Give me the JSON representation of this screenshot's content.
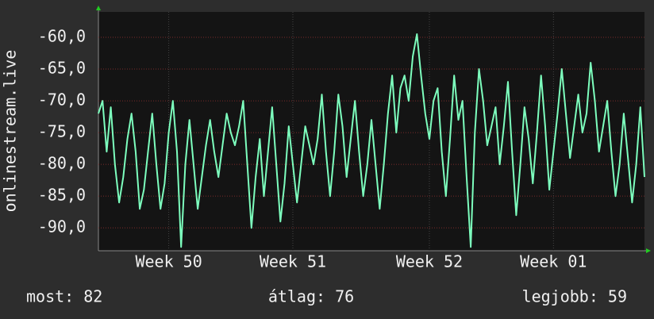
{
  "chart_data": {
    "type": "line",
    "ylabel": "onlinestream.live",
    "values": [
      -72,
      -70,
      -78,
      -71,
      -80,
      -86,
      -82,
      -76,
      -72,
      -78,
      -87,
      -84,
      -78,
      -72,
      -80,
      -87,
      -83,
      -75,
      -70,
      -78,
      -93,
      -80,
      -73,
      -80,
      -87,
      -82,
      -77,
      -73,
      -78,
      -82,
      -77,
      -72,
      -75,
      -77,
      -74,
      -70,
      -80,
      -90,
      -82,
      -76,
      -85,
      -78,
      -71,
      -80,
      -89,
      -83,
      -74,
      -80,
      -86,
      -80,
      -74,
      -77,
      -80,
      -76,
      -69,
      -78,
      -85,
      -78,
      -69,
      -74,
      -82,
      -76,
      -70,
      -78,
      -85,
      -80,
      -73,
      -80,
      -87,
      -80,
      -72,
      -66,
      -75,
      -68,
      -66,
      -70,
      -63,
      -59.5,
      -66,
      -72,
      -76,
      -70,
      -68,
      -78,
      -85,
      -76,
      -66,
      -73,
      -70,
      -82,
      -93,
      -75,
      -65,
      -70,
      -77,
      -74,
      -71,
      -80,
      -74,
      -67,
      -78,
      -88,
      -80,
      -71,
      -76,
      -83,
      -75,
      -66,
      -74,
      -84,
      -78,
      -72,
      -65,
      -72,
      -79,
      -74,
      -69,
      -75,
      -72,
      -64,
      -70,
      -78,
      -74,
      -70,
      -78,
      -85,
      -80,
      -72,
      -79,
      -86,
      -80,
      -71,
      -82
    ],
    "color": "#7dffbe",
    "xlim": [
      0,
      132
    ],
    "xticks": [
      {
        "value": 17,
        "label": "Week 50"
      },
      {
        "value": 47,
        "label": "Week 51"
      },
      {
        "value": 80,
        "label": "Week 52"
      },
      {
        "value": 110,
        "label": "Week 01"
      }
    ],
    "ylim": [
      -93.6,
      -56
    ],
    "yticks": [
      {
        "value": -60,
        "label": "-60,0"
      },
      {
        "value": -65,
        "label": "-65,0"
      },
      {
        "value": -70,
        "label": "-70,0"
      },
      {
        "value": -75,
        "label": "-75,0"
      },
      {
        "value": -80,
        "label": "-80,0"
      },
      {
        "value": -85,
        "label": "-85,0"
      },
      {
        "value": -90,
        "label": "-90,0"
      }
    ],
    "grid": true,
    "stats": [
      "most: 82",
      "átlag: 76",
      "legjobb: 59"
    ]
  }
}
